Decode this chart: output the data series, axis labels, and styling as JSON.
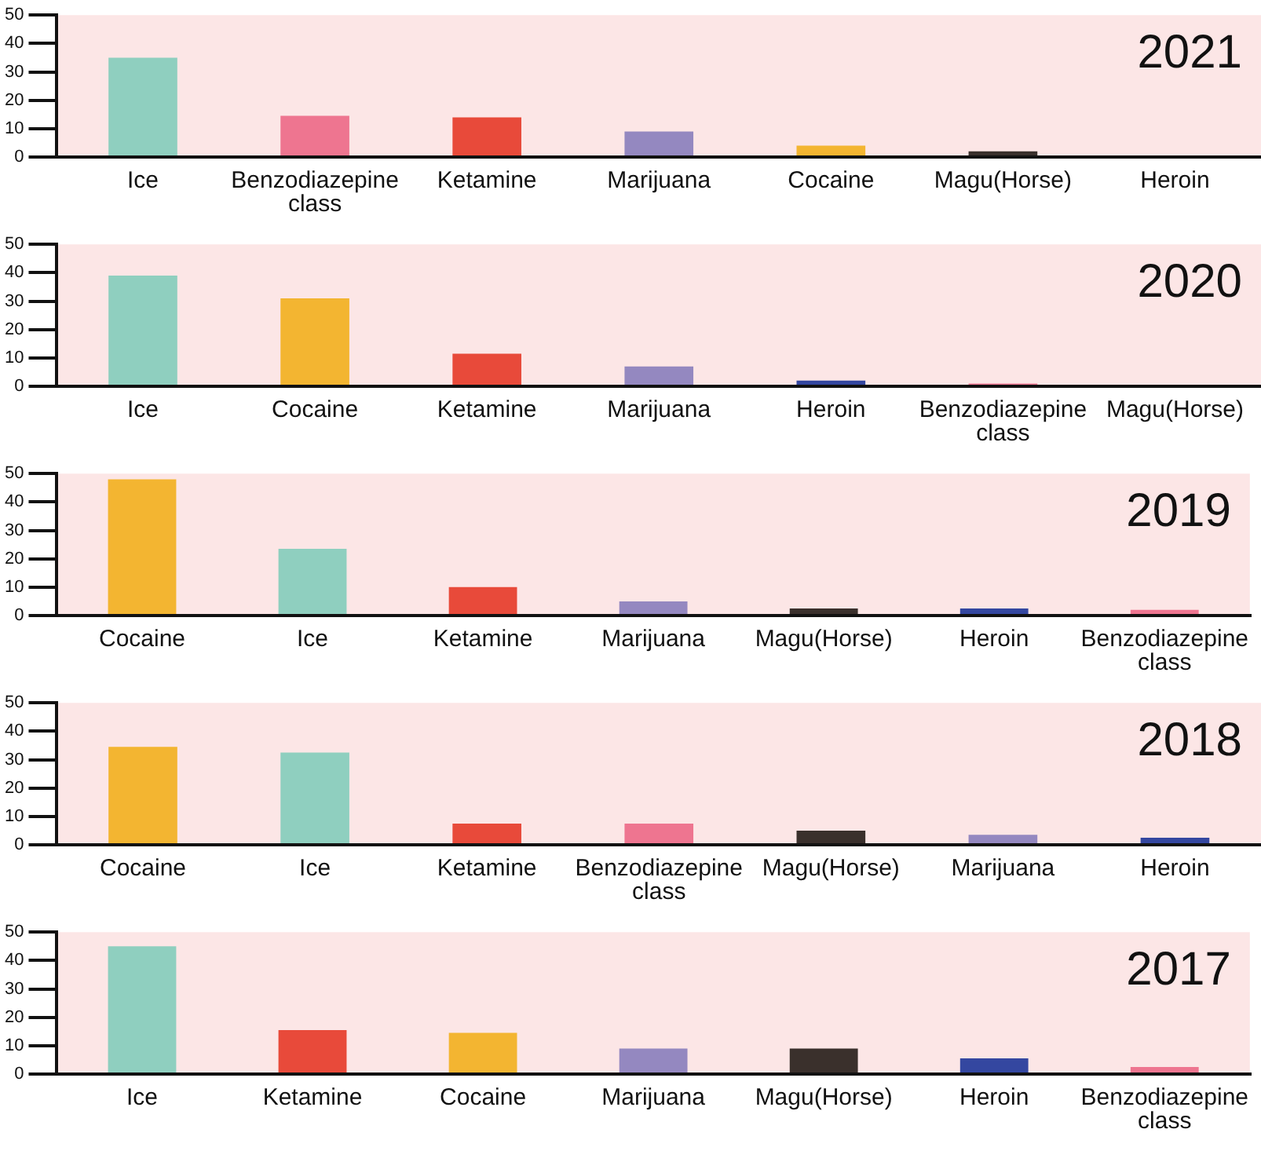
{
  "chart_data": [
    {
      "type": "bar",
      "annotations": [
        "2021"
      ],
      "categories": [
        "Ice",
        "Benzodiazepine class",
        "Ketamine",
        "Marijuana",
        "Cocaine",
        "Magu(Horse)",
        "Heroin"
      ],
      "values": [
        35,
        14.5,
        14,
        9,
        4,
        2,
        0
      ],
      "colors": [
        "#8fcfbf",
        "#ee7590",
        "#e84a3a",
        "#9488c0",
        "#f3b531",
        "#3a302c",
        "#3447a0"
      ],
      "ylim": [
        0,
        50
      ],
      "yticks": [
        0,
        10,
        20,
        30,
        40,
        50
      ]
    },
    {
      "type": "bar",
      "annotations": [
        "2020"
      ],
      "categories": [
        "Ice",
        "Cocaine",
        "Ketamine",
        "Marijuana",
        "Heroin",
        "Benzodiazepine class",
        "Magu(Horse)"
      ],
      "values": [
        39,
        31,
        11.5,
        7,
        2,
        1,
        0
      ],
      "colors": [
        "#8fcfbf",
        "#f3b531",
        "#e84a3a",
        "#9488c0",
        "#3447a0",
        "#ee7590",
        "#3a302c"
      ],
      "ylim": [
        0,
        50
      ],
      "yticks": [
        0,
        10,
        20,
        30,
        40,
        50
      ]
    },
    {
      "type": "bar",
      "annotations": [
        "2019"
      ],
      "categories": [
        "Cocaine",
        "Ice",
        "Ketamine",
        "Marijuana",
        "Magu(Horse)",
        "Heroin",
        "Benzodiazepine class"
      ],
      "values": [
        48,
        23.5,
        10,
        5,
        2.5,
        2.5,
        2
      ],
      "colors": [
        "#f3b531",
        "#8fcfbf",
        "#e84a3a",
        "#9488c0",
        "#3a302c",
        "#3447a0",
        "#ee7590"
      ],
      "ylim": [
        0,
        50
      ],
      "yticks": [
        0,
        10,
        20,
        30,
        40,
        50
      ]
    },
    {
      "type": "bar",
      "annotations": [
        "2018"
      ],
      "categories": [
        "Cocaine",
        "Ice",
        "Ketamine",
        "Benzodiazepine class",
        "Magu(Horse)",
        "Marijuana",
        "Heroin"
      ],
      "values": [
        34.5,
        32.5,
        7.5,
        7.5,
        5,
        3.5,
        2.5
      ],
      "colors": [
        "#f3b531",
        "#8fcfbf",
        "#e84a3a",
        "#ee7590",
        "#3a302c",
        "#9488c0",
        "#3447a0"
      ],
      "ylim": [
        0,
        50
      ],
      "yticks": [
        0,
        10,
        20,
        30,
        40,
        50
      ]
    },
    {
      "type": "bar",
      "annotations": [
        "2017"
      ],
      "categories": [
        "Ice",
        "Ketamine",
        "Cocaine",
        "Marijuana",
        "Magu(Horse)",
        "Heroin",
        "Benzodiazepine class"
      ],
      "values": [
        45,
        15.5,
        14.5,
        9,
        9,
        5.5,
        2.5
      ],
      "colors": [
        "#8fcfbf",
        "#e84a3a",
        "#f3b531",
        "#9488c0",
        "#3a302c",
        "#3447a0",
        "#ee7590"
      ],
      "ylim": [
        0,
        50
      ],
      "yticks": [
        0,
        10,
        20,
        30,
        40,
        50
      ]
    }
  ]
}
